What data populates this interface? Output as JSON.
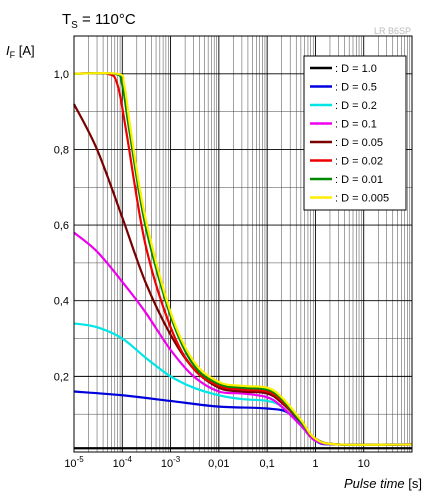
{
  "chart_data": {
    "type": "line",
    "title": {
      "prefix": "T",
      "sub": "S",
      "suffix": " = 110°C"
    },
    "ylabel": {
      "main": "I",
      "sub": "F",
      "unit": " [A]"
    },
    "xlabel": {
      "main": "Pulse time",
      "unit": " [s]"
    },
    "watermark": "LR B6SP",
    "x_scale": "log",
    "xlim": [
      1e-05,
      100
    ],
    "ylim": [
      0,
      1.1
    ],
    "grid": true,
    "legend_position": "top-right",
    "x_ticks": [
      {
        "value": 1e-05,
        "base": "10",
        "exp": "-5"
      },
      {
        "value": 0.0001,
        "base": "10",
        "exp": "-4"
      },
      {
        "value": 0.001,
        "base": "10",
        "exp": "-3"
      },
      {
        "value": 0.01,
        "base": "0,01",
        "exp": ""
      },
      {
        "value": 0.1,
        "base": "0,1",
        "exp": ""
      },
      {
        "value": 1,
        "base": "1",
        "exp": ""
      },
      {
        "value": 10,
        "base": "10",
        "exp": ""
      }
    ],
    "y_ticks": [
      {
        "value": 0.2,
        "label": "0,2"
      },
      {
        "value": 0.4,
        "label": "0,4"
      },
      {
        "value": 0.6,
        "label": "0,6"
      },
      {
        "value": 0.8,
        "label": "0,8"
      },
      {
        "value": 1.0,
        "label": "1,0"
      }
    ],
    "series": [
      {
        "name": ": D = 1.0",
        "color": "#000000",
        "points": [
          [
            1e-05,
            0.01
          ],
          [
            1,
            0.01
          ],
          [
            100,
            0.01
          ]
        ]
      },
      {
        "name": ": D = 0.5",
        "color": "#0000dd",
        "points": [
          [
            1e-05,
            0.16
          ],
          [
            0.0001,
            0.15
          ],
          [
            0.001,
            0.135
          ],
          [
            0.01,
            0.12
          ],
          [
            0.1,
            0.115
          ],
          [
            0.3,
            0.1
          ],
          [
            1,
            0.03
          ],
          [
            3,
            0.02
          ],
          [
            100,
            0.02
          ]
        ]
      },
      {
        "name": ": D = 0.2",
        "color": "#00e5e5",
        "points": [
          [
            1e-05,
            0.34
          ],
          [
            3e-05,
            0.33
          ],
          [
            0.0001,
            0.3
          ],
          [
            0.0003,
            0.25
          ],
          [
            0.001,
            0.2
          ],
          [
            0.003,
            0.17
          ],
          [
            0.01,
            0.15
          ],
          [
            0.03,
            0.14
          ],
          [
            0.1,
            0.135
          ],
          [
            0.2,
            0.12
          ],
          [
            0.5,
            0.07
          ],
          [
            1,
            0.03
          ],
          [
            3,
            0.02
          ],
          [
            100,
            0.02
          ]
        ]
      },
      {
        "name": ": D = 0.1",
        "color": "#ee00ee",
        "points": [
          [
            1e-05,
            0.58
          ],
          [
            3e-05,
            0.53
          ],
          [
            0.0001,
            0.45
          ],
          [
            0.0003,
            0.37
          ],
          [
            0.001,
            0.27
          ],
          [
            0.003,
            0.2
          ],
          [
            0.01,
            0.16
          ],
          [
            0.03,
            0.155
          ],
          [
            0.1,
            0.145
          ],
          [
            0.2,
            0.12
          ],
          [
            0.5,
            0.07
          ],
          [
            1,
            0.03
          ],
          [
            3,
            0.02
          ],
          [
            100,
            0.02
          ]
        ]
      },
      {
        "name": ": D = 0.05",
        "color": "#7a0000",
        "points": [
          [
            1e-05,
            0.92
          ],
          [
            3e-05,
            0.8
          ],
          [
            0.0001,
            0.62
          ],
          [
            0.0003,
            0.45
          ],
          [
            0.001,
            0.31
          ],
          [
            0.003,
            0.22
          ],
          [
            0.01,
            0.17
          ],
          [
            0.03,
            0.16
          ],
          [
            0.1,
            0.155
          ],
          [
            0.2,
            0.13
          ],
          [
            0.5,
            0.08
          ],
          [
            1,
            0.035
          ],
          [
            3,
            0.02
          ],
          [
            100,
            0.02
          ]
        ]
      },
      {
        "name": ": D = 0.02",
        "color": "#ee0000",
        "points": [
          [
            1e-05,
            1.0
          ],
          [
            5e-05,
            1.0
          ],
          [
            8e-05,
            0.97
          ],
          [
            0.00012,
            0.85
          ],
          [
            0.0003,
            0.55
          ],
          [
            0.001,
            0.33
          ],
          [
            0.003,
            0.22
          ],
          [
            0.01,
            0.175
          ],
          [
            0.03,
            0.165
          ],
          [
            0.1,
            0.16
          ],
          [
            0.2,
            0.135
          ],
          [
            0.5,
            0.08
          ],
          [
            1,
            0.035
          ],
          [
            3,
            0.02
          ],
          [
            100,
            0.02
          ]
        ]
      },
      {
        "name": ": D = 0.01",
        "color": "#008800",
        "points": [
          [
            1e-05,
            1.0
          ],
          [
            7e-05,
            1.0
          ],
          [
            0.0001,
            0.97
          ],
          [
            0.00014,
            0.85
          ],
          [
            0.0003,
            0.6
          ],
          [
            0.001,
            0.36
          ],
          [
            0.003,
            0.23
          ],
          [
            0.01,
            0.18
          ],
          [
            0.03,
            0.17
          ],
          [
            0.1,
            0.165
          ],
          [
            0.2,
            0.14
          ],
          [
            0.5,
            0.08
          ],
          [
            1,
            0.035
          ],
          [
            3,
            0.02
          ],
          [
            100,
            0.02
          ]
        ]
      },
      {
        "name": ": D = 0.005",
        "color": "#ffee00",
        "points": [
          [
            1e-05,
            1.0
          ],
          [
            8e-05,
            1.0
          ],
          [
            0.00011,
            0.97
          ],
          [
            0.00015,
            0.85
          ],
          [
            0.0003,
            0.62
          ],
          [
            0.001,
            0.37
          ],
          [
            0.003,
            0.24
          ],
          [
            0.01,
            0.185
          ],
          [
            0.03,
            0.175
          ],
          [
            0.1,
            0.17
          ],
          [
            0.2,
            0.145
          ],
          [
            0.5,
            0.085
          ],
          [
            1,
            0.035
          ],
          [
            3,
            0.02
          ],
          [
            100,
            0.02
          ]
        ]
      }
    ]
  }
}
